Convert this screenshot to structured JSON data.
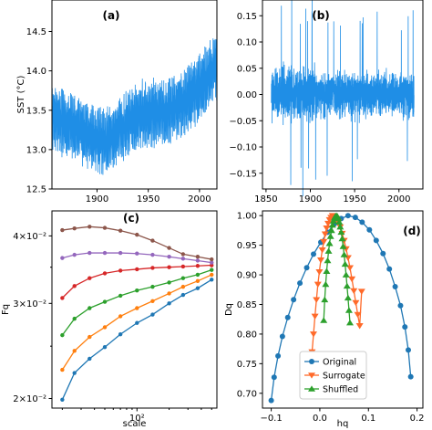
{
  "colors": {
    "blue": "#1f77b4",
    "line_blue": "#1f8ee6",
    "orange": "#ff6a2a",
    "green": "#2ca02c"
  },
  "chart_data": [
    {
      "id": "a",
      "type": "line",
      "panel_label": "(a)",
      "xlabel": "",
      "ylabel": "SST (°C)",
      "xlim": [
        1856,
        2017
      ],
      "ylim": [
        12.5,
        14.9
      ],
      "xticks": [
        1900,
        1950,
        2000
      ],
      "yticks": [
        12.5,
        13.0,
        13.5,
        14.0,
        14.5
      ],
      "ytick_labels": [
        "12.5",
        "13.0",
        "13.5",
        "14.0",
        "14.5"
      ],
      "series": [
        {
          "x_start": 1856,
          "x_end": 2017,
          "trend_x": [
            1856,
            1880,
            1905,
            1910,
            1940,
            1970,
            1990,
            2017
          ],
          "trend_y": [
            13.4,
            13.28,
            13.08,
            13.12,
            13.45,
            13.48,
            13.65,
            14.05
          ],
          "half_range": 0.45
        }
      ]
    },
    {
      "id": "b",
      "type": "line",
      "panel_label": "(b)",
      "xlabel": "",
      "ylabel": "",
      "xlim": [
        1846,
        2027
      ],
      "ylim": [
        -0.18,
        0.18
      ],
      "xticks": [
        1850,
        1900,
        1950,
        2000
      ],
      "yticks": [
        -0.15,
        -0.1,
        -0.05,
        0.0,
        0.05,
        0.1,
        0.15
      ],
      "ytick_labels": [
        "−0.15",
        "−0.10",
        "−0.05",
        "0.00",
        "0.05",
        "0.10",
        "0.15"
      ],
      "series": [
        {
          "x_start": 1856,
          "x_end": 2017,
          "half_range": 0.08
        }
      ]
    },
    {
      "id": "c",
      "type": "line",
      "panel_label": "(c)",
      "xlabel": "scale",
      "ylabel": "Fq",
      "xscale": "log",
      "yscale": "log",
      "xlim": [
        16,
        560
      ],
      "ylim": [
        0.0192,
        0.0445
      ],
      "xticks_major": [
        100
      ],
      "xtick_labels": [
        "10²"
      ],
      "yticks_major": [
        0.02,
        0.03,
        0.04
      ],
      "ytick_labels": [
        "2×10⁻²",
        "3×10⁻²",
        "4×10⁻²"
      ],
      "x": [
        20,
        26,
        36,
        50,
        70,
        100,
        140,
        200,
        270,
        370,
        500
      ],
      "series": [
        {
          "color": "#1f77b4",
          "values": [
            0.0199,
            0.0223,
            0.0237,
            0.0249,
            0.0263,
            0.0276,
            0.0286,
            0.03,
            0.0311,
            0.032,
            0.0332
          ]
        },
        {
          "color": "#ff7f0e",
          "values": [
            0.0226,
            0.0245,
            0.026,
            0.0271,
            0.0284,
            0.0294,
            0.0303,
            0.0313,
            0.0322,
            0.033,
            0.0339
          ]
        },
        {
          "color": "#2ca02c",
          "values": [
            0.0262,
            0.0281,
            0.0294,
            0.0302,
            0.031,
            0.0317,
            0.0322,
            0.0328,
            0.0334,
            0.0339,
            0.0346
          ]
        },
        {
          "color": "#d62728",
          "values": [
            0.0307,
            0.0323,
            0.0334,
            0.0341,
            0.0345,
            0.0347,
            0.0349,
            0.035,
            0.0351,
            0.0352,
            0.0353
          ]
        },
        {
          "color": "#9467bd",
          "values": [
            0.0364,
            0.0369,
            0.0372,
            0.0372,
            0.0372,
            0.0371,
            0.0369,
            0.0366,
            0.0363,
            0.036,
            0.0357
          ]
        },
        {
          "color": "#8c564b",
          "values": [
            0.041,
            0.0413,
            0.0416,
            0.0414,
            0.0409,
            0.0402,
            0.0392,
            0.038,
            0.037,
            0.0366,
            0.0362
          ]
        }
      ]
    },
    {
      "id": "d",
      "type": "line",
      "panel_label": "(d)",
      "xlabel": "hq",
      "ylabel": "Dq",
      "xlim": [
        -0.118,
        0.212
      ],
      "ylim": [
        0.675,
        1.008
      ],
      "xticks": [
        -0.1,
        0.0,
        0.1,
        0.2
      ],
      "xtick_labels": [
        "−0.1",
        "0.0",
        "0.1",
        "0.2"
      ],
      "yticks": [
        0.7,
        0.75,
        0.8,
        0.85,
        0.9,
        0.95,
        1.0
      ],
      "ytick_labels": [
        "0.70",
        "0.75",
        "0.80",
        "0.85",
        "0.90",
        "0.95",
        "1.00"
      ],
      "legend": {
        "position": "lower-center",
        "labels": [
          "Original",
          "Surrogate",
          "Shuffled"
        ]
      },
      "series": [
        {
          "name": "Original",
          "color": "#1f77b4",
          "marker": "circle",
          "x": [
            -0.1,
            -0.094,
            -0.086,
            -0.077,
            -0.066,
            -0.054,
            -0.041,
            -0.027,
            -0.013,
            0.002,
            0.016,
            0.03,
            0.044,
            0.058,
            0.073,
            0.087,
            0.102,
            0.116,
            0.13,
            0.143,
            0.155,
            0.166,
            0.175,
            0.182,
            0.187
          ],
          "y": [
            0.688,
            0.727,
            0.763,
            0.796,
            0.828,
            0.858,
            0.886,
            0.912,
            0.935,
            0.955,
            0.972,
            0.986,
            0.995,
            1.0,
            0.997,
            0.989,
            0.976,
            0.958,
            0.936,
            0.91,
            0.88,
            0.848,
            0.812,
            0.773,
            0.728
          ]
        },
        {
          "name": "Surrogate",
          "color": "#ff6a2a",
          "marker": "triangle-down",
          "x": [
            -0.016,
            -0.013,
            -0.01,
            -0.007,
            -0.004,
            -0.001,
            0.002,
            0.005,
            0.008,
            0.011,
            0.014,
            0.017,
            0.02,
            0.023,
            0.026,
            0.03,
            0.034,
            0.038,
            0.042,
            0.046,
            0.05,
            0.054,
            0.058,
            0.062,
            0.066,
            0.07,
            0.074,
            0.078,
            0.082,
            0.086
          ],
          "y": [
            0.77,
            0.8,
            0.83,
            0.858,
            0.884,
            0.905,
            0.925,
            0.942,
            0.956,
            0.969,
            0.979,
            0.987,
            0.993,
            0.997,
            1.0,
            0.999,
            0.995,
            0.989,
            0.981,
            0.97,
            0.958,
            0.944,
            0.929,
            0.912,
            0.893,
            0.873,
            0.853,
            0.833,
            0.814,
            0.872
          ]
        },
        {
          "name": "Shuffled",
          "color": "#2ca02c",
          "marker": "triangle-up",
          "x": [
            0.008,
            0.01,
            0.012,
            0.014,
            0.016,
            0.018,
            0.02,
            0.022,
            0.024,
            0.026,
            0.028,
            0.03,
            0.032,
            0.034,
            0.036,
            0.038,
            0.04,
            0.042,
            0.044,
            0.046,
            0.048,
            0.05,
            0.052,
            0.054,
            0.056,
            0.058,
            0.06,
            0.062
          ],
          "y": [
            0.823,
            0.858,
            0.884,
            0.906,
            0.924,
            0.94,
            0.953,
            0.965,
            0.975,
            0.984,
            0.991,
            0.996,
            0.999,
            1.0,
            0.999,
            0.995,
            0.989,
            0.981,
            0.972,
            0.961,
            0.948,
            0.934,
            0.918,
            0.9,
            0.881,
            0.861,
            0.84,
            0.819
          ]
        }
      ]
    }
  ]
}
